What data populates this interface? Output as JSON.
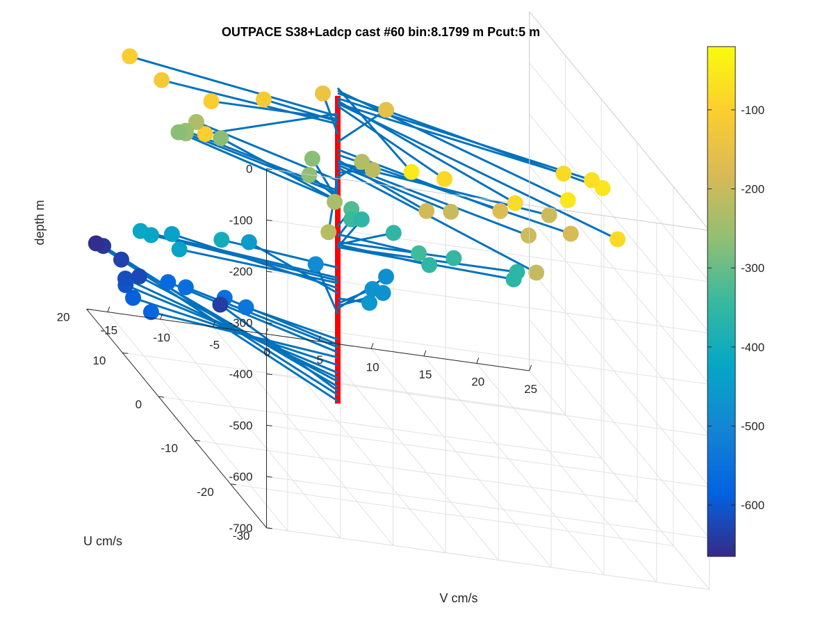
{
  "chart_data": {
    "type": "scatter",
    "title": "OUTPACE S38+Ladcp cast #60 bin:8.1799 m  Pcut:5 m",
    "xlabel": "V cm/s",
    "ylabel": "U cm/s",
    "zlabel": "depth m",
    "xlim": [
      -17,
      25
    ],
    "ylim": [
      -30,
      20
    ],
    "zlim": [
      -700,
      0
    ],
    "xticks": [
      "-15",
      "-10",
      "-5",
      "0",
      "5",
      "10",
      "15",
      "20",
      "25"
    ],
    "yticks": [
      "-30",
      "-20",
      "-10",
      "0",
      "10",
      "20"
    ],
    "zticks": [
      "0",
      "-100",
      "-200",
      "-300",
      "-400",
      "-500",
      "-600",
      "-700"
    ],
    "colorbar": {
      "ticks": [
        "-100",
        "-200",
        "-300",
        "-400",
        "-500",
        "-600"
      ],
      "range": [
        -665,
        -20
      ],
      "colormap": "parula"
    },
    "grid": true,
    "shaft_color": "#ff0000",
    "stick_color": "#0072bd",
    "points": [
      {
        "v": 0.5,
        "u": -19,
        "z": -50
      },
      {
        "v": 15,
        "u": -20,
        "z": -55
      },
      {
        "v": 20,
        "u": -15,
        "z": -60
      },
      {
        "v": 20,
        "u": -12,
        "z": -70
      },
      {
        "v": 10,
        "u": -20,
        "z": -75
      },
      {
        "v": 18,
        "u": -10,
        "z": -80
      },
      {
        "v": 18,
        "u": -25,
        "z": -80
      },
      {
        "v": 5,
        "u": -15,
        "z": -85
      },
      {
        "v": -16,
        "u": -10,
        "z": -100
      },
      {
        "v": -17,
        "u": 8,
        "z": -105
      },
      {
        "v": -12,
        "u": 0,
        "z": -110
      },
      {
        "v": -6,
        "u": 3,
        "z": -115
      },
      {
        "v": -15,
        "u": 5,
        "z": -120
      },
      {
        "v": 2,
        "u": 10,
        "z": -140
      },
      {
        "v": 8,
        "u": 10,
        "z": -155
      },
      {
        "v": 12,
        "u": -10,
        "z": -170
      },
      {
        "v": 18,
        "u": -12,
        "z": -180
      },
      {
        "v": 5,
        "u": -10,
        "z": -190
      },
      {
        "v": 18,
        "u": -6,
        "z": -195
      },
      {
        "v": 14,
        "u": -12,
        "z": -195
      },
      {
        "v": 8,
        "u": -8,
        "z": -200
      },
      {
        "v": 12,
        "u": -20,
        "z": -205
      },
      {
        "v": 4,
        "u": 2,
        "z": -215
      },
      {
        "v": 4,
        "u": 5,
        "z": -225
      },
      {
        "v": -6,
        "u": -15,
        "z": -220
      },
      {
        "v": -10,
        "u": 10,
        "z": -230
      },
      {
        "v": -2,
        "u": -5,
        "z": -235
      },
      {
        "v": -11,
        "u": 10,
        "z": -250
      },
      {
        "v": -11,
        "u": 10,
        "z": -255
      },
      {
        "v": -1,
        "u": 5,
        "z": -265
      },
      {
        "v": -11,
        "u": 12,
        "z": -270
      },
      {
        "v": -7,
        "u": 12,
        "z": -270
      },
      {
        "v": 1,
        "u": 10,
        "z": -270
      },
      {
        "v": 3,
        "u": 5,
        "z": -320
      },
      {
        "v": 7,
        "u": -2,
        "z": -335
      },
      {
        "v": 3,
        "u": 5,
        "z": -340
      },
      {
        "v": 11,
        "u": 0,
        "z": -350
      },
      {
        "v": 8,
        "u": -2,
        "z": -355
      },
      {
        "v": 7,
        "u": 5,
        "z": -355
      },
      {
        "v": 17,
        "u": 0,
        "z": -360
      },
      {
        "v": 16,
        "u": -2,
        "z": -360
      },
      {
        "v": 5,
        "u": 8,
        "z": -360
      },
      {
        "v": -10,
        "u": 3,
        "z": -400
      },
      {
        "v": -17,
        "u": 5,
        "z": -420
      },
      {
        "v": -16,
        "u": 5,
        "z": -425
      },
      {
        "v": -14,
        "u": 3,
        "z": -430
      },
      {
        "v": -13,
        "u": 8,
        "z": -440
      },
      {
        "v": -5,
        "u": 10,
        "z": -450
      },
      {
        "v": 3,
        "u": 0,
        "z": -460
      },
      {
        "v": 5,
        "u": 5,
        "z": -470
      },
      {
        "v": 6,
        "u": 5,
        "z": -475
      },
      {
        "v": 8,
        "u": 10,
        "z": -480
      },
      {
        "v": 2,
        "u": 12,
        "z": -490
      },
      {
        "v": -7,
        "u": 5,
        "z": -540
      },
      {
        "v": -8,
        "u": 8,
        "z": -550
      },
      {
        "v": -11,
        "u": 10,
        "z": -555
      },
      {
        "v": -12,
        "u": 12,
        "z": -565
      },
      {
        "v": -16,
        "u": 5,
        "z": -575
      },
      {
        "v": -16,
        "u": 10,
        "z": -590
      },
      {
        "v": -15,
        "u": 15,
        "z": -605
      },
      {
        "v": -14,
        "u": 18,
        "z": -615
      },
      {
        "v": -12,
        "u": 20,
        "z": -622
      },
      {
        "v": -12,
        "u": 25,
        "z": -632
      },
      {
        "v": -5,
        "u": 18,
        "z": -640
      },
      {
        "v": -12,
        "u": 30,
        "z": -648
      },
      {
        "v": -12,
        "u": 32,
        "z": -660
      }
    ]
  }
}
